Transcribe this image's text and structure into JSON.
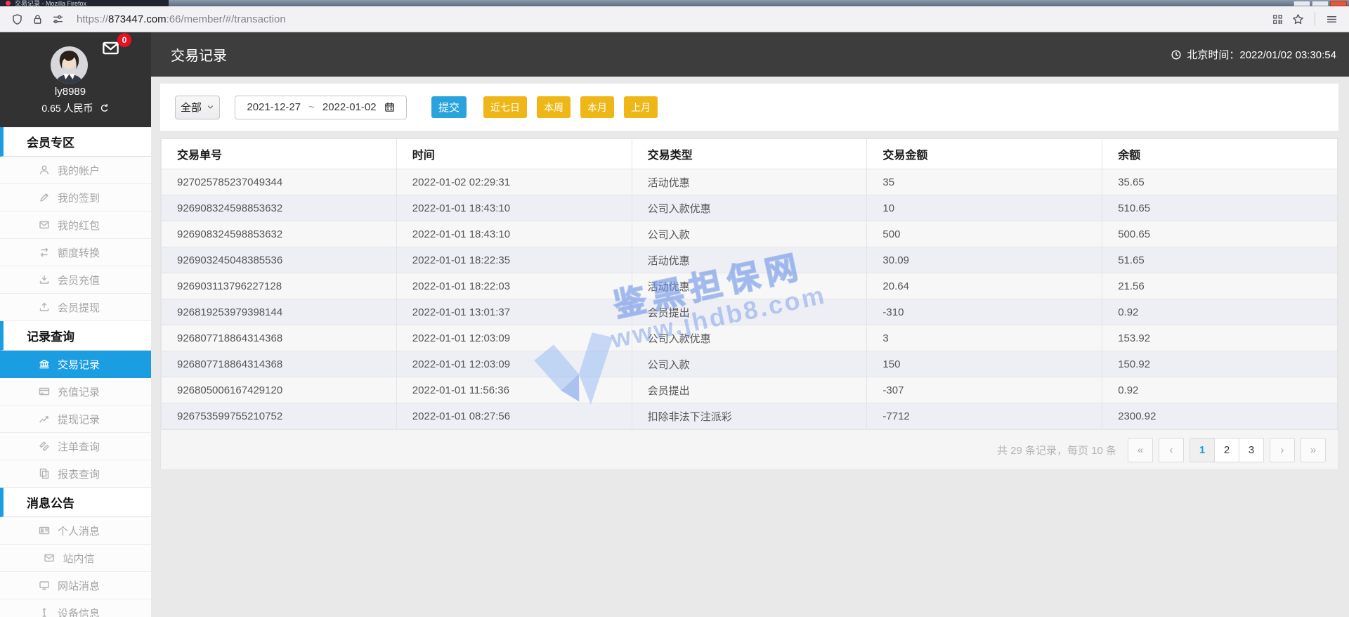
{
  "browser": {
    "window_title": "交易记录 - Mozilla Firefox",
    "url_scheme": "https://",
    "url_domain": "873447.com",
    "url_path": ":66/member/#/transaction",
    "left_icons": [
      "shield",
      "lock",
      "permissions-sliders"
    ],
    "right_icons": [
      "qr-code",
      "bookmark-star",
      "menu"
    ]
  },
  "header": {
    "title": "交易记录",
    "time": "北京时间：2022/01/02 03:30:54"
  },
  "user": {
    "name": "ly8989",
    "balance": "0.65 人民币",
    "message_count": "0"
  },
  "sidebar": {
    "sections": [
      {
        "title": "会员专区",
        "items": [
          {
            "label": "我的帐户",
            "icon": "user"
          },
          {
            "label": "我的签到",
            "icon": "pencil"
          },
          {
            "label": "我的红包",
            "icon": "envelope"
          },
          {
            "label": "额度转换",
            "icon": "swap"
          },
          {
            "label": "会员充值",
            "icon": "deposit"
          },
          {
            "label": "会员提现",
            "icon": "withdraw"
          }
        ]
      },
      {
        "title": "记录查询",
        "items": [
          {
            "label": "交易记录",
            "icon": "bank",
            "active": true
          },
          {
            "label": "充值记录",
            "icon": "card"
          },
          {
            "label": "提现记录",
            "icon": "chart"
          },
          {
            "label": "注单查询",
            "icon": "tags"
          },
          {
            "label": "报表查询",
            "icon": "report"
          }
        ]
      },
      {
        "title": "消息公告",
        "items": [
          {
            "label": "个人消息",
            "icon": "idcard"
          },
          {
            "label": "站内信",
            "icon": "envelope"
          },
          {
            "label": "网站消息",
            "icon": "monitor"
          },
          {
            "label": "设备信息",
            "icon": "info"
          }
        ]
      }
    ]
  },
  "filters": {
    "type_selected": "全部",
    "date_start": "2021-12-27",
    "date_separator": "~",
    "date_end": "2022-01-02",
    "submit_label": "提交",
    "quick_buttons": [
      "近七日",
      "本周",
      "本月",
      "上月"
    ]
  },
  "table": {
    "columns": [
      "交易单号",
      "时间",
      "交易类型",
      "交易金额",
      "余额"
    ],
    "rows": [
      [
        "927025785237049344",
        "2022-01-02 02:29:31",
        "活动优惠",
        "35",
        "35.65"
      ],
      [
        "926908324598853632",
        "2022-01-01 18:43:10",
        "公司入款优惠",
        "10",
        "510.65"
      ],
      [
        "926908324598853632",
        "2022-01-01 18:43:10",
        "公司入款",
        "500",
        "500.65"
      ],
      [
        "926903245048385536",
        "2022-01-01 18:22:35",
        "活动优惠",
        "30.09",
        "51.65"
      ],
      [
        "926903113796227128",
        "2022-01-01 18:22:03",
        "活动优惠",
        "20.64",
        "21.56"
      ],
      [
        "926819253979398144",
        "2022-01-01 13:01:37",
        "会员提出",
        "-310",
        "0.92"
      ],
      [
        "926807718864314368",
        "2022-01-01 12:03:09",
        "公司入款优惠",
        "3",
        "153.92"
      ],
      [
        "926807718864314368",
        "2022-01-01 12:03:09",
        "公司入款",
        "150",
        "150.92"
      ],
      [
        "926805006167429120",
        "2022-01-01 11:56:36",
        "会员提出",
        "-307",
        "0.92"
      ],
      [
        "926753599755210752",
        "2022-01-01 08:27:56",
        "扣除非法下注派彩",
        "-7712",
        "2300.92"
      ]
    ]
  },
  "pagination": {
    "summary": "共 29 条记录，每页 10 条",
    "first_label": "«",
    "prev_label": "‹",
    "pages": [
      "1",
      "2",
      "3"
    ],
    "active_page": "1",
    "next_label": "›",
    "last_label": "»"
  },
  "watermark": {
    "brand": "鉴黑担保网",
    "url": "www.jhdb8.com"
  },
  "colors": {
    "accent_blue": "#1b9de2",
    "button_blue": "#2aa3dc",
    "accent_yellow": "#eeb717",
    "badge_red": "#e81123",
    "header_dark": "#3d3d3d",
    "sidebar_dark": "#323232"
  }
}
